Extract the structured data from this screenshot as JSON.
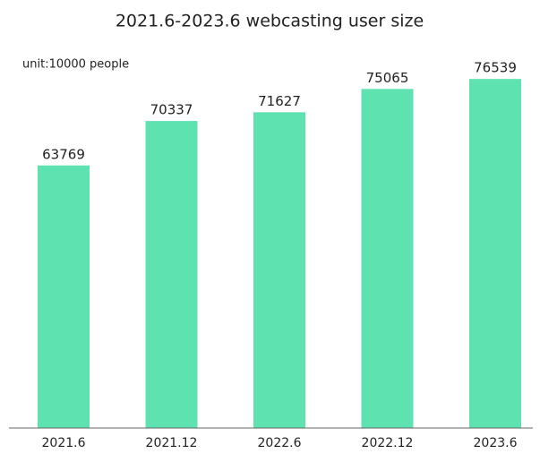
{
  "chart_data": {
    "type": "bar",
    "title": "2021.6-2023.6 webcasting user size",
    "annotations": [
      "unit:10000 people"
    ],
    "categories": [
      "2021.6",
      "2021.12",
      "2022.6",
      "2022.12",
      "2023.6"
    ],
    "values": [
      63769,
      70337,
      71627,
      75065,
      76539
    ],
    "color": "#5de2b0",
    "ylim": [
      25000,
      80000
    ],
    "grid": false
  }
}
